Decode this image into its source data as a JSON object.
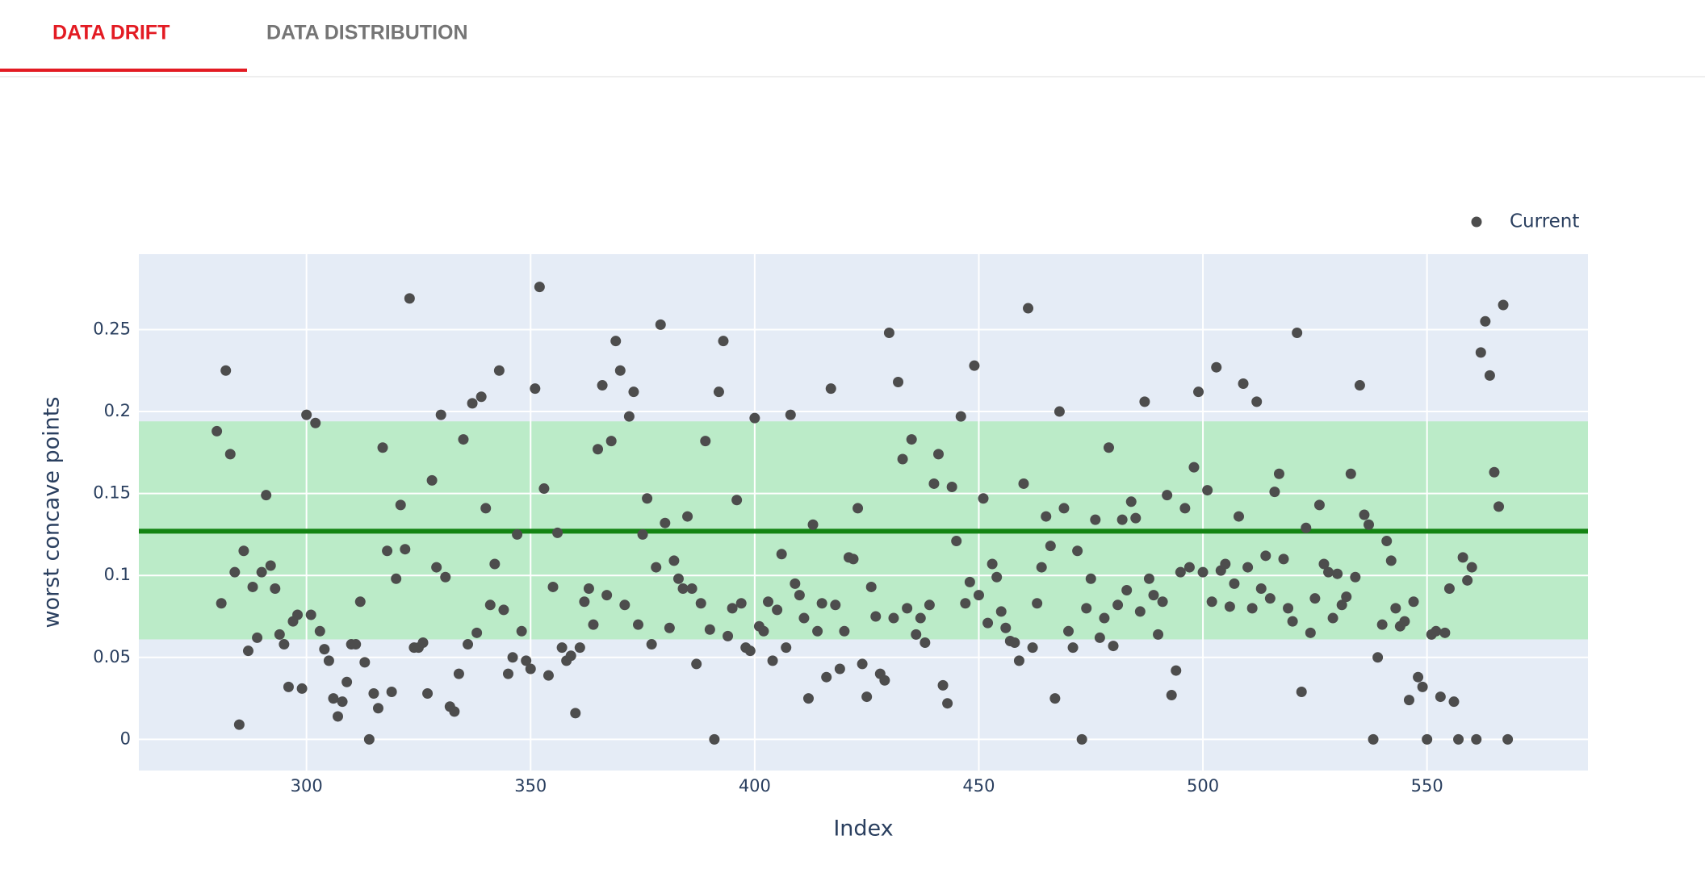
{
  "tabs": [
    "DATA DRIFT",
    "DATA DISTRIBUTION"
  ],
  "chart_data": {
    "type": "scatter",
    "x_label": "Index",
    "y_label": "worst concave points",
    "xlim": [
      262.6,
      585.9
    ],
    "ylim": [
      -0.019,
      0.296
    ],
    "xticks": [
      300,
      350,
      400,
      450,
      500,
      550
    ],
    "yticks": [
      0,
      0.05,
      0.1,
      0.15,
      0.2,
      0.25
    ],
    "grid": true,
    "legend": "top-right",
    "reference_band": [
      0.061,
      0.194
    ],
    "reference_band_color": "#bbebc8",
    "reference_line": 0.127,
    "reference_line_color": "#138413",
    "x": [
      280,
      281,
      282,
      283,
      284,
      285,
      286,
      287,
      288,
      289,
      290,
      291,
      292,
      293,
      294,
      295,
      296,
      297,
      298,
      299,
      300,
      301,
      302,
      303,
      304,
      305,
      306,
      307,
      308,
      309,
      310,
      311,
      312,
      313,
      314,
      315,
      316,
      317,
      318,
      319,
      320,
      321,
      322,
      323,
      324,
      325,
      326,
      327,
      328,
      329,
      330,
      331,
      332,
      333,
      334,
      335,
      336,
      337,
      338,
      339,
      340,
      341,
      342,
      343,
      344,
      345,
      346,
      347,
      348,
      349,
      350,
      351,
      352,
      353,
      354,
      355,
      356,
      357,
      358,
      359,
      360,
      361,
      362,
      363,
      364,
      365,
      366,
      367,
      368,
      369,
      370,
      371,
      372,
      373,
      374,
      375,
      376,
      377,
      378,
      379,
      380,
      381,
      382,
      383,
      384,
      385,
      386,
      387,
      388,
      389,
      390,
      391,
      392,
      393,
      394,
      395,
      396,
      397,
      398,
      399,
      400,
      401,
      402,
      403,
      404,
      405,
      406,
      407,
      408,
      409,
      410,
      411,
      412,
      413,
      414,
      415,
      416,
      417,
      418,
      419,
      420,
      421,
      422,
      423,
      424,
      425,
      426,
      427,
      428,
      429,
      430,
      431,
      432,
      433,
      434,
      435,
      436,
      437,
      438,
      439,
      440,
      441,
      442,
      443,
      444,
      445,
      446,
      447,
      448,
      449,
      450,
      451,
      452,
      453,
      454,
      455,
      456,
      457,
      458,
      459,
      460,
      461,
      462,
      463,
      464,
      465,
      466,
      467,
      468,
      469,
      470,
      471,
      472,
      473,
      474,
      475,
      476,
      477,
      478,
      479,
      480,
      481,
      482,
      483,
      484,
      485,
      486,
      487,
      488,
      489,
      490,
      491,
      492,
      493,
      494,
      495,
      496,
      497,
      498,
      499,
      500,
      501,
      502,
      503,
      504,
      505,
      506,
      507,
      508,
      509,
      510,
      511,
      512,
      513,
      514,
      515,
      516,
      517,
      518,
      519,
      520,
      521,
      522,
      523,
      524,
      525,
      526,
      527,
      528,
      529,
      530,
      531,
      532,
      533,
      534,
      535,
      536,
      537,
      538,
      539,
      540,
      541,
      542,
      543,
      544,
      545,
      546,
      547,
      548,
      549,
      550,
      551,
      552,
      553,
      554,
      555,
      556,
      557,
      558,
      559,
      560,
      561,
      562,
      563,
      564,
      565,
      566,
      567,
      568
    ],
    "series": [
      {
        "name": "Current",
        "color": "#4d4d4d",
        "values": [
          0.188,
          0.083,
          0.225,
          0.174,
          0.102,
          0.009,
          0.115,
          0.054,
          0.093,
          0.062,
          0.102,
          0.149,
          0.106,
          0.092,
          0.064,
          0.058,
          0.032,
          0.072,
          0.076,
          0.031,
          0.198,
          0.076,
          0.193,
          0.066,
          0.055,
          0.048,
          0.025,
          0.014,
          0.023,
          0.035,
          0.058,
          0.058,
          0.084,
          0.047,
          0,
          0.028,
          0.019,
          0.178,
          0.115,
          0.029,
          0.098,
          0.143,
          0.116,
          0.269,
          0.056,
          0.056,
          0.059,
          0.028,
          0.158,
          0.105,
          0.198,
          0.099,
          0.02,
          0.017,
          0.04,
          0.183,
          0.058,
          0.205,
          0.065,
          0.209,
          0.141,
          0.082,
          0.107,
          0.225,
          0.079,
          0.04,
          0.05,
          0.125,
          0.066,
          0.048,
          0.043,
          0.214,
          0.276,
          0.153,
          0.039,
          0.093,
          0.126,
          0.056,
          0.048,
          0.051,
          0.016,
          0.056,
          0.084,
          0.092,
          0.07,
          0.177,
          0.216,
          0.088,
          0.182,
          0.243,
          0.225,
          0.082,
          0.197,
          0.212,
          0.07,
          0.125,
          0.147,
          0.058,
          0.105,
          0.253,
          0.132,
          0.068,
          0.109,
          0.098,
          0.092,
          0.136,
          0.092,
          0.046,
          0.083,
          0.182,
          0.067,
          0,
          0.212,
          0.243,
          0.063,
          0.08,
          0.146,
          0.083,
          0.056,
          0.054,
          0.196,
          0.069,
          0.066,
          0.084,
          0.048,
          0.079,
          0.113,
          0.056,
          0.198,
          0.095,
          0.088,
          0.074,
          0.025,
          0.131,
          0.066,
          0.083,
          0.038,
          0.214,
          0.082,
          0.043,
          0.066,
          0.111,
          0.11,
          0.141,
          0.046,
          0.026,
          0.093,
          0.075,
          0.04,
          0.036,
          0.248,
          0.074,
          0.218,
          0.171,
          0.08,
          0.183,
          0.064,
          0.074,
          0.059,
          0.082,
          0.156,
          0.174,
          0.033,
          0.022,
          0.154,
          0.121,
          0.197,
          0.083,
          0.096,
          0.228,
          0.088,
          0.147,
          0.071,
          0.107,
          0.099,
          0.078,
          0.068,
          0.06,
          0.059,
          0.048,
          0.156,
          0.263,
          0.056,
          0.083,
          0.105,
          0.136,
          0.118,
          0.025,
          0.2,
          0.141,
          0.066,
          0.056,
          0.115,
          0,
          0.08,
          0.098,
          0.134,
          0.062,
          0.074,
          0.178,
          0.057,
          0.082,
          0.134,
          0.091,
          0.145,
          0.135,
          0.078,
          0.206,
          0.098,
          0.088,
          0.064,
          0.084,
          0.149,
          0.027,
          0.042,
          0.102,
          0.141,
          0.105,
          0.166,
          0.212,
          0.102,
          0.152,
          0.084,
          0.227,
          0.103,
          0.107,
          0.081,
          0.095,
          0.136,
          0.217,
          0.105,
          0.08,
          0.206,
          0.092,
          0.112,
          0.086,
          0.151,
          0.162,
          0.11,
          0.08,
          0.072,
          0.248,
          0.029,
          0.129,
          0.065,
          0.086,
          0.143,
          0.107,
          0.102,
          0.074,
          0.101,
          0.082,
          0.087,
          0.162,
          0.099,
          0.216,
          0.137,
          0.131,
          0,
          0.05,
          0.07,
          0.121,
          0.109,
          0.08,
          0.069,
          0.072,
          0.024,
          0.084,
          0.038,
          0.032,
          0,
          0.064,
          0.066,
          0.026,
          0.065,
          0.092,
          0.023,
          0,
          0.111,
          0.097,
          0.105,
          0,
          0.236,
          0.255,
          0.222,
          0.163,
          0.142,
          0.265,
          0
        ]
      }
    ]
  }
}
